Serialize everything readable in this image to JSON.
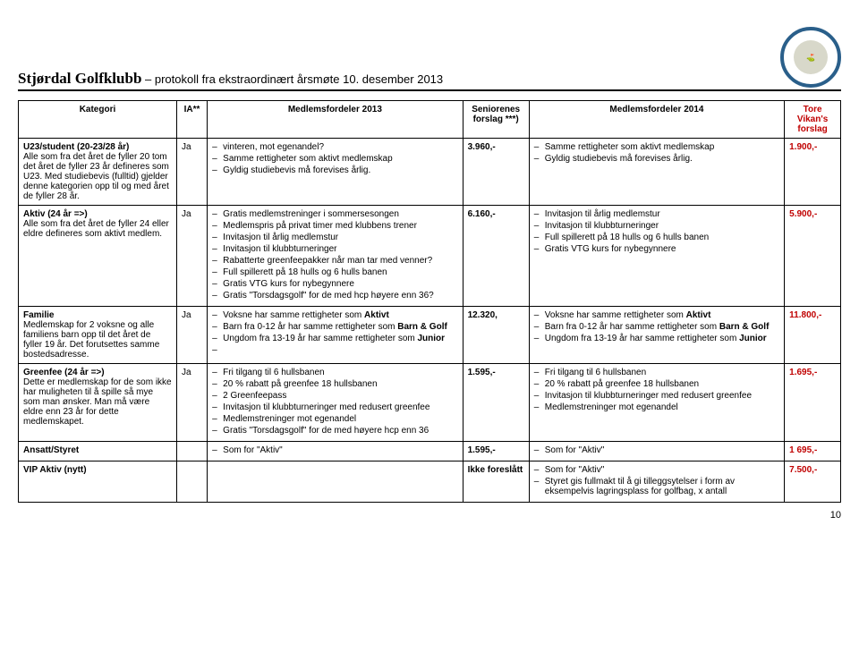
{
  "header": {
    "org": "Stjørdal Golfklubb",
    "subtitle": "– protokoll fra ekstraordinært årsmøte 10. desember 2013",
    "logo": "⛳"
  },
  "table": {
    "headers": {
      "cat": "Kategori",
      "ia": "IA**",
      "m2013": "Medlemsfordeler 2013",
      "senior": "Seniorenes forslag ***)",
      "m2014": "Medlemsfordeler 2014",
      "tore": "Tore Vikan's forslag"
    },
    "rows": [
      {
        "cat_title": "U23/student (20-23/28 år)",
        "cat_desc": "Alle som fra det året de fyller 20 tom det året de fyller 23 år defineres som U23. Med studiebevis (fulltid) gjelder denne kategorien opp til og med året de fyller 28 år.",
        "ia": "Ja",
        "m2013": [
          "vinteren, mot egenandel?",
          "Samme rettigheter som aktivt medlemskap",
          "Gyldig studiebevis må forevises årlig."
        ],
        "senior": "3.960,-",
        "m2014": [
          "Samme rettigheter som aktivt medlemskap",
          "Gyldig studiebevis må forevises årlig."
        ],
        "tore": "1.900,-"
      },
      {
        "cat_title": "Aktiv (24 år =>)",
        "cat_desc": "Alle som fra det året de fyller 24 eller eldre defineres som aktivt medlem.",
        "ia": "Ja",
        "m2013": [
          "Gratis medlemstreninger i sommersesongen",
          "Medlemspris på privat timer med klubbens trener",
          "Invitasjon til årlig medlemstur",
          "Invitasjon til klubbturneringer",
          "Rabatterte greenfeepakker når man tar med venner?",
          "Full spillerett på 18 hulls og 6 hulls banen",
          "Gratis VTG kurs for nybegynnere",
          "Gratis \"Torsdagsgolf\" for de med hcp høyere enn 36?"
        ],
        "senior": "6.160,-",
        "m2014": [
          "Invitasjon til årlig medlemstur",
          "Invitasjon til klubbturneringer",
          "Full spillerett på 18 hulls og 6 hulls banen",
          "Gratis VTG kurs for nybegynnere"
        ],
        "tore": "5.900,-"
      },
      {
        "cat_title": "Familie",
        "cat_desc": "Medlemskap for 2 voksne og alle familiens barn opp til det året de fyller 19 år. Det forutsettes samme bostedsadresse.",
        "ia": "Ja",
        "m2013": [
          "Voksne har samme rettigheter som Aktivt",
          "Barn fra 0-12 år har samme rettigheter som Barn & Golf",
          "Ungdom fra 13-19 år har samme rettigheter som Junior",
          ""
        ],
        "senior": "12.320,",
        "m2014": [
          "Voksne har samme rettigheter som Aktivt",
          "Barn fra 0-12 år har samme rettigheter som Barn & Golf",
          "Ungdom fra 13-19 år har samme rettigheter som Junior"
        ],
        "tore": "11.800,-"
      },
      {
        "cat_title": "Greenfee (24 år =>)",
        "cat_desc": "Dette er medlemskap for de som ikke har muligheten til å spille så mye som man ønsker. Man må være eldre enn 23 år for dette medlemskapet.",
        "ia": "Ja",
        "m2013": [
          "Fri tilgang til 6 hullsbanen",
          "20 % rabatt på greenfee 18 hullsbanen",
          "2 Greenfeepass",
          "Invitasjon til klubbturneringer med redusert greenfee",
          "Medlemstreninger mot egenandel",
          "Gratis \"Torsdagsgolf\" for de med høyere hcp enn 36"
        ],
        "senior": "1.595,-",
        "m2014": [
          "Fri tilgang til 6 hullsbanen",
          "20 % rabatt på greenfee 18 hullsbanen",
          "Invitasjon til klubbturneringer med redusert greenfee",
          "Medlemstreninger mot egenandel"
        ],
        "tore": "1.695,-"
      },
      {
        "cat_title": "Ansatt/Styret",
        "cat_desc": "",
        "ia": "",
        "m2013": [
          "Som for \"Aktiv\""
        ],
        "senior": "1.595,-",
        "m2014": [
          "Som for \"Aktiv\""
        ],
        "tore": "1 695,-"
      },
      {
        "cat_title": "VIP Aktiv (nytt)",
        "cat_desc": "",
        "ia": "",
        "m2013": [],
        "senior": "Ikke foreslått",
        "m2014": [
          "Som for \"Aktiv\"",
          "Styret gis fullmakt til å gi tilleggsytelser i form av eksempelvis lagringsplass for golfbag, x antall"
        ],
        "tore": "7.500,-"
      }
    ]
  },
  "pagenum": "10"
}
